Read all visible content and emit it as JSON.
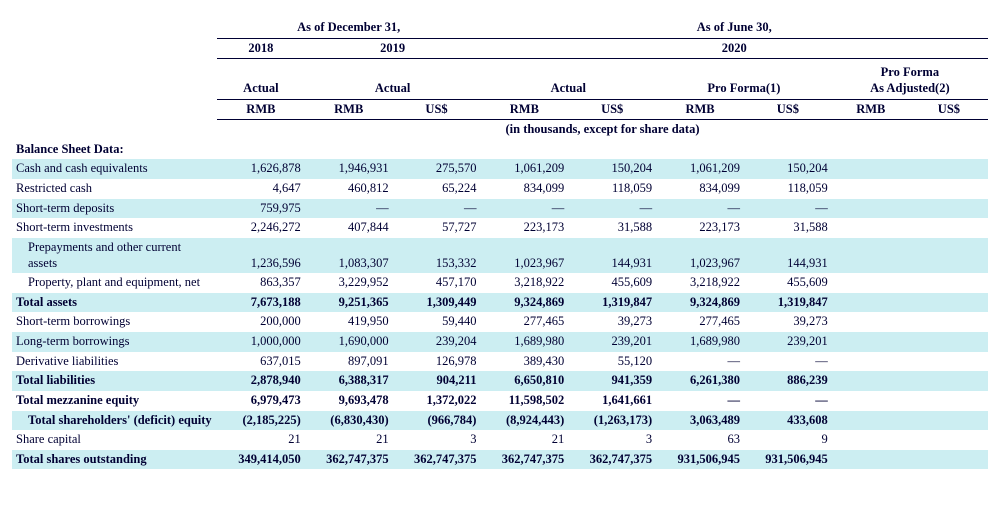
{
  "meta": {
    "unit_note": "(in thousands, except for share data)",
    "period_groups": {
      "dec31": {
        "title": "As of December 31,",
        "y2018": "2018",
        "y2019": "2019"
      },
      "jun30": {
        "title": "As of June 30,",
        "y2020": "2020"
      }
    },
    "col_sets": {
      "actual": "Actual",
      "proforma": "Pro Forma(1)",
      "proforma_adj": "Pro Forma\nAs Adjusted(2)"
    },
    "currencies": {
      "rmb": "RMB",
      "uss": "US$"
    },
    "section_title": "Balance Sheet Data:",
    "colors": {
      "text": "#000033",
      "band": "#cceef2",
      "background": "#ffffff"
    },
    "font_family": "Times New Roman",
    "font_size_pt": 9.5
  },
  "rows": [
    {
      "label": "Cash and cash equivalents",
      "bold": false,
      "indent": 0,
      "band": true,
      "v": [
        "1,626,878",
        "1,946,931",
        "275,570",
        "1,061,209",
        "150,204",
        "1,061,209",
        "150,204",
        "",
        ""
      ]
    },
    {
      "label": "Restricted cash",
      "bold": false,
      "indent": 0,
      "band": false,
      "v": [
        "4,647",
        "460,812",
        "65,224",
        "834,099",
        "118,059",
        "834,099",
        "118,059",
        "",
        ""
      ]
    },
    {
      "label": "Short-term deposits",
      "bold": false,
      "indent": 0,
      "band": true,
      "v": [
        "759,975",
        "—",
        "—",
        "—",
        "—",
        "—",
        "—",
        "",
        ""
      ]
    },
    {
      "label": "Short-term investments",
      "bold": false,
      "indent": 0,
      "band": false,
      "v": [
        "2,246,272",
        "407,844",
        "57,727",
        "223,173",
        "31,588",
        "223,173",
        "31,588",
        "",
        ""
      ]
    },
    {
      "label": "Prepayments and other current assets",
      "bold": false,
      "indent": 1,
      "band": true,
      "v": [
        "1,236,596",
        "1,083,307",
        "153,332",
        "1,023,967",
        "144,931",
        "1,023,967",
        "144,931",
        "",
        ""
      ]
    },
    {
      "label": "Property, plant and equipment, net",
      "bold": false,
      "indent": 1,
      "band": false,
      "v": [
        "863,357",
        "3,229,952",
        "457,170",
        "3,218,922",
        "455,609",
        "3,218,922",
        "455,609",
        "",
        ""
      ]
    },
    {
      "label": "Total assets",
      "bold": true,
      "indent": 0,
      "band": true,
      "v": [
        "7,673,188",
        "9,251,365",
        "1,309,449",
        "9,324,869",
        "1,319,847",
        "9,324,869",
        "1,319,847",
        "",
        ""
      ]
    },
    {
      "label": "Short-term borrowings",
      "bold": false,
      "indent": 0,
      "band": false,
      "v": [
        "200,000",
        "419,950",
        "59,440",
        "277,465",
        "39,273",
        "277,465",
        "39,273",
        "",
        ""
      ]
    },
    {
      "label": "Long-term borrowings",
      "bold": false,
      "indent": 0,
      "band": true,
      "v": [
        "1,000,000",
        "1,690,000",
        "239,204",
        "1,689,980",
        "239,201",
        "1,689,980",
        "239,201",
        "",
        ""
      ]
    },
    {
      "label": "Derivative liabilities",
      "bold": false,
      "indent": 0,
      "band": false,
      "v": [
        "637,015",
        "897,091",
        "126,978",
        "389,430",
        "55,120",
        "—",
        "—",
        "",
        ""
      ]
    },
    {
      "label": "Total liabilities",
      "bold": true,
      "indent": 0,
      "band": true,
      "v": [
        "2,878,940",
        "6,388,317",
        "904,211",
        "6,650,810",
        "941,359",
        "6,261,380",
        "886,239",
        "",
        ""
      ]
    },
    {
      "label": "Total mezzanine equity",
      "bold": true,
      "indent": 0,
      "band": false,
      "v": [
        "6,979,473",
        "9,693,478",
        "1,372,022",
        "11,598,502",
        "1,641,661",
        "—",
        "—",
        "",
        ""
      ]
    },
    {
      "label": "Total shareholders' (deficit) equity",
      "bold": true,
      "indent": 1,
      "band": true,
      "v": [
        "(2,185,225)",
        "(6,830,430)",
        "(966,784)",
        "(8,924,443)",
        "(1,263,173)",
        "3,063,489",
        "433,608",
        "",
        ""
      ]
    },
    {
      "label": "Share capital",
      "bold": false,
      "indent": 0,
      "band": false,
      "v": [
        "21",
        "21",
        "3",
        "21",
        "3",
        "63",
        "9",
        "",
        ""
      ]
    },
    {
      "label": "Total shares outstanding",
      "bold": true,
      "indent": 0,
      "band": true,
      "v": [
        "349,414,050",
        "362,747,375",
        "362,747,375",
        "362,747,375",
        "362,747,375",
        "931,506,945",
        "931,506,945",
        "",
        ""
      ]
    }
  ]
}
